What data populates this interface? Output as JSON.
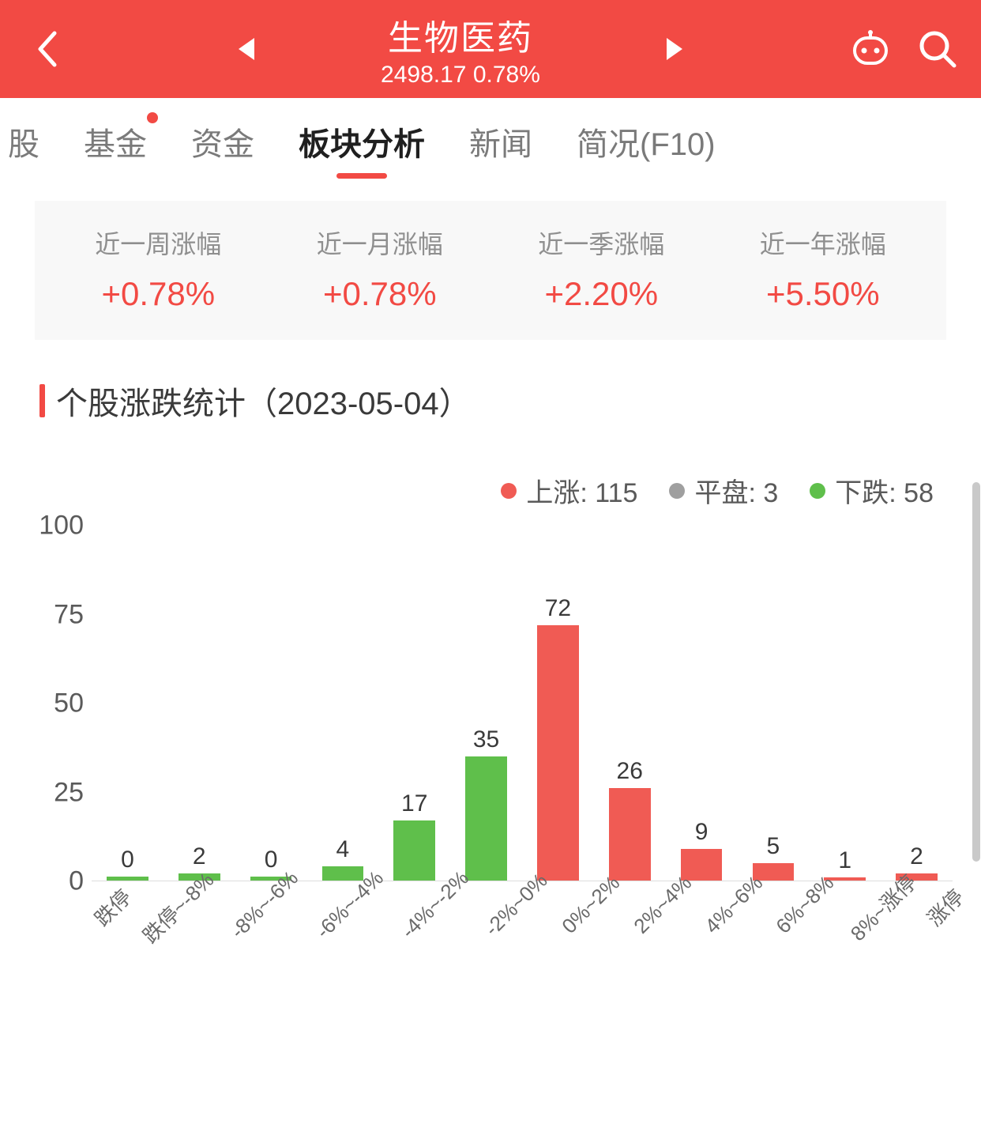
{
  "header": {
    "title": "生物医药",
    "index_value": "2498.17",
    "change_pct": "0.78%",
    "bg_color": "#f24a44",
    "text_color": "#ffffff"
  },
  "tabs": {
    "items": [
      {
        "label": "股",
        "active": false,
        "has_dot": false
      },
      {
        "label": "基金",
        "active": false,
        "has_dot": true
      },
      {
        "label": "资金",
        "active": false,
        "has_dot": false
      },
      {
        "label": "板块分析",
        "active": true,
        "has_dot": false
      },
      {
        "label": "新闻",
        "active": false,
        "has_dot": false
      },
      {
        "label": "简况(F10)",
        "active": false,
        "has_dot": false
      }
    ],
    "inactive_color": "#7a7a7a",
    "active_color": "#1f1f1f",
    "indicator_color": "#f24a44"
  },
  "stats": {
    "bg_color": "#f8f8f8",
    "label_color": "#8f8f8f",
    "value_color": "#f24a44",
    "items": [
      {
        "label": "近一周涨幅",
        "value": "+0.78%"
      },
      {
        "label": "近一月涨幅",
        "value": "+0.78%"
      },
      {
        "label": "近一季涨幅",
        "value": "+2.20%"
      },
      {
        "label": "近一年涨幅",
        "value": "+5.50%"
      }
    ]
  },
  "section": {
    "title": "个股涨跌统计（2023-05-04）",
    "bar_color": "#f24a44"
  },
  "legend": {
    "items": [
      {
        "label": "上涨",
        "value": 115,
        "color": "#f05b54"
      },
      {
        "label": "平盘",
        "value": 3,
        "color": "#9f9f9f"
      },
      {
        "label": "下跌",
        "value": 58,
        "color": "#5fbf4b"
      }
    ]
  },
  "chart": {
    "type": "bar",
    "ylim": [
      0,
      100
    ],
    "yticks": [
      0,
      25,
      50,
      75,
      100
    ],
    "ytick_fontsize": 34,
    "axis_color": "#dddddd",
    "up_color": "#f05b54",
    "down_color": "#5fbf4b",
    "value_label_fontsize": 30,
    "x_label_fontsize": 26,
    "x_label_rotation": -45,
    "bar_width": 0.58,
    "categories": [
      "跌停",
      "跌停~-8%",
      "-8%~-6%",
      "-6%~-4%",
      "-4%~-2%",
      "-2%~0%",
      "0%~2%",
      "2%~4%",
      "4%~6%",
      "6%~8%",
      "8%~涨停",
      "涨停"
    ],
    "values": [
      0,
      2,
      0,
      4,
      17,
      35,
      72,
      26,
      9,
      5,
      1,
      2
    ],
    "directions": [
      "down",
      "down",
      "down",
      "down",
      "down",
      "down",
      "up",
      "up",
      "up",
      "up",
      "up",
      "up"
    ]
  }
}
